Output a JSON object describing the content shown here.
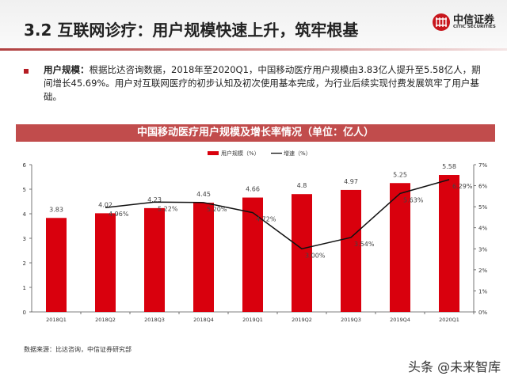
{
  "header": {
    "title": "3.2 互联网诊疗：用户规模快速上升，筑牢根基",
    "logo_cn": "中信证券",
    "logo_en": "CITIC SECURITIES"
  },
  "body": {
    "label": "用户规模：",
    "text": "根据比达咨询数据，2018年至2020Q1，中国移动医疗用户规模由3.83亿人提升至5.58亿人，期间增长45.69%。用户对互联网医疗的初步认知及初次使用基本完成，为行业后续实现付费发展筑牢了用户基础。"
  },
  "colors": {
    "bar": "#d9000d",
    "line": "#111111",
    "title_bar": "#c14c4c",
    "accent": "#b51c23"
  },
  "chart_data": {
    "type": "bar+line",
    "title": "中国移动医疗用户规模及增长率情况（单位：亿人）",
    "categories": [
      "2018Q1",
      "2018Q2",
      "2018Q3",
      "2018Q4",
      "2019Q1",
      "2019Q2",
      "2019Q3",
      "2019Q4",
      "2020Q1"
    ],
    "series": [
      {
        "name": "用户规模（%）",
        "type": "bar",
        "axis": "left",
        "values": [
          3.83,
          4.02,
          4.23,
          4.45,
          4.66,
          4.8,
          4.97,
          5.25,
          5.58
        ],
        "labels": [
          "3.83",
          "4.02",
          "4.23",
          "4.45",
          "4.66",
          "4.8",
          "4.97",
          "5.25",
          "5.58"
        ]
      },
      {
        "name": "增速（%）",
        "type": "line",
        "axis": "right",
        "values": [
          null,
          4.96,
          5.22,
          5.2,
          4.72,
          3.0,
          3.54,
          5.63,
          6.29
        ],
        "labels": [
          null,
          "4.96%",
          "5.22%",
          "5.20%",
          "4.72%",
          "3.00%",
          "3.54%",
          "5.63%",
          "6.29%"
        ]
      }
    ],
    "left_axis": {
      "range": [
        0,
        6
      ],
      "ticks": [
        "0",
        "1",
        "2",
        "3",
        "4",
        "5",
        "6"
      ]
    },
    "right_axis": {
      "range": [
        0,
        7
      ],
      "ticks": [
        "0%",
        "1%",
        "2%",
        "3%",
        "4%",
        "5%",
        "6%",
        "7%"
      ]
    },
    "legend": "top-center",
    "grid": false
  },
  "footer": {
    "source": "数据来源：比达咨询，中信证券研究部",
    "watermark": "头条 @未来智库"
  }
}
